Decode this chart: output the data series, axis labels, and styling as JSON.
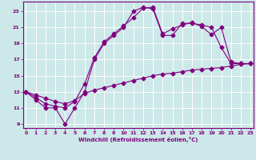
{
  "xlabel": "Windchill (Refroidissement éolien,°C)",
  "bg_color": "#cce8e8",
  "line_color": "#800080",
  "grid_color": "#ffffff",
  "xmin": 0,
  "xmax": 23,
  "ymin": 8.5,
  "ymax": 24.2,
  "yticks": [
    9,
    11,
    13,
    15,
    17,
    19,
    21,
    23
  ],
  "xticks": [
    0,
    1,
    2,
    3,
    4,
    5,
    6,
    7,
    8,
    9,
    10,
    11,
    12,
    13,
    14,
    15,
    16,
    17,
    18,
    19,
    20,
    21,
    22,
    23
  ],
  "line1_x": [
    0,
    1,
    2,
    3,
    4,
    5,
    6,
    7,
    8,
    9,
    10,
    11,
    12,
    13,
    14,
    15,
    16,
    17,
    18,
    19,
    20,
    21,
    22,
    23
  ],
  "line1_y": [
    13,
    12,
    11,
    11,
    9,
    11,
    13,
    17,
    19,
    20,
    21,
    23,
    23.5,
    23.3,
    20,
    20,
    21.5,
    21.5,
    21.3,
    21,
    18.5,
    16.5,
    16.5,
    16.5
  ],
  "line2_x": [
    0,
    1,
    2,
    3,
    4,
    5,
    6,
    7,
    8,
    9,
    10,
    11,
    12,
    13,
    14,
    15,
    16,
    17,
    18,
    19,
    20,
    21,
    22,
    23
  ],
  "line2_y": [
    13,
    12.3,
    11.5,
    11.2,
    11.0,
    11.8,
    14,
    17.2,
    19.2,
    20.2,
    21.2,
    22.2,
    23.4,
    23.5,
    20.2,
    20.8,
    21.3,
    21.6,
    21.1,
    20.1,
    21.0,
    16.7,
    16.5,
    16.5
  ],
  "line3_x": [
    0,
    1,
    2,
    3,
    4,
    5,
    6,
    7,
    8,
    9,
    10,
    11,
    12,
    13,
    14,
    15,
    16,
    17,
    18,
    19,
    20,
    21,
    22,
    23
  ],
  "line3_y": [
    13,
    12.6,
    12.2,
    11.8,
    11.5,
    11.9,
    12.8,
    13.2,
    13.5,
    13.8,
    14.1,
    14.4,
    14.7,
    15.0,
    15.2,
    15.3,
    15.5,
    15.7,
    15.8,
    15.9,
    16.0,
    16.2,
    16.4,
    16.5
  ]
}
